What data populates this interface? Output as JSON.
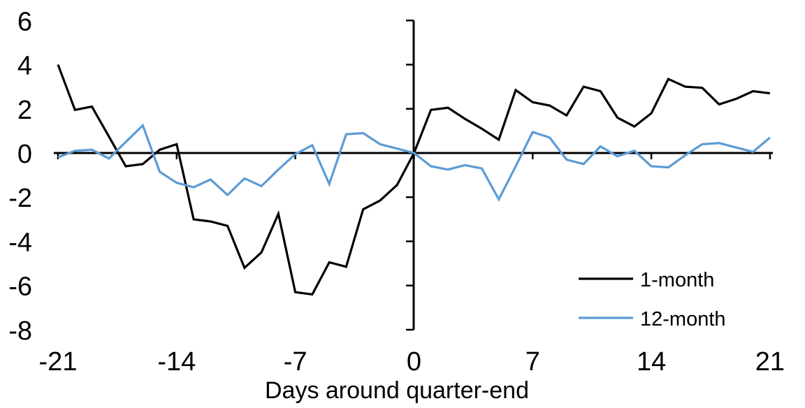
{
  "chart_data": {
    "type": "line",
    "title": "",
    "xlabel": "Days around quarter-end",
    "ylabel": "",
    "xlim": [
      -21,
      21
    ],
    "ylim": [
      -8,
      6
    ],
    "xticks": [
      -21,
      -14,
      -7,
      0,
      7,
      14,
      21
    ],
    "yticks": [
      6,
      4,
      2,
      0,
      -2,
      -4,
      -6,
      -8
    ],
    "grid": false,
    "legend_position": "inside-bottom-right",
    "axis_color": "#000000",
    "x": [
      -21,
      -20,
      -19,
      -18,
      -17,
      -16,
      -15,
      -14,
      -13,
      -12,
      -11,
      -10,
      -9,
      -8,
      -7,
      -6,
      -5,
      -4,
      -3,
      -2,
      -1,
      0,
      1,
      2,
      3,
      4,
      5,
      6,
      7,
      8,
      9,
      10,
      11,
      12,
      13,
      14,
      15,
      16,
      17,
      18,
      19,
      20,
      21
    ],
    "series": [
      {
        "name": "1-month",
        "color": "#000000",
        "values": [
          4.0,
          1.95,
          2.1,
          0.75,
          -0.6,
          -0.5,
          0.15,
          0.4,
          -3.0,
          -3.1,
          -3.3,
          -5.2,
          -4.5,
          -2.75,
          -6.3,
          -6.4,
          -4.95,
          -5.15,
          -2.55,
          -2.15,
          -1.45,
          0,
          1.95,
          2.05,
          1.55,
          1.1,
          0.6,
          2.85,
          2.3,
          2.15,
          1.7,
          3.0,
          2.8,
          1.6,
          1.2,
          1.8,
          3.35,
          3.0,
          2.95,
          2.2,
          2.45,
          2.8,
          2.7
        ]
      },
      {
        "name": "12-month",
        "color": "#5B9BD5",
        "values": [
          -0.2,
          0.1,
          0.15,
          -0.25,
          0.5,
          1.25,
          -0.85,
          -1.35,
          -1.55,
          -1.2,
          -1.9,
          -1.15,
          -1.5,
          -0.75,
          -0.05,
          0.35,
          -1.4,
          0.85,
          0.9,
          0.4,
          0.2,
          0,
          -0.6,
          -0.75,
          -0.55,
          -0.7,
          -2.1,
          -0.6,
          0.95,
          0.7,
          -0.3,
          -0.5,
          0.3,
          -0.15,
          0.1,
          -0.6,
          -0.65,
          -0.1,
          0.4,
          0.45,
          0.25,
          0.05,
          0.7
        ]
      }
    ]
  }
}
